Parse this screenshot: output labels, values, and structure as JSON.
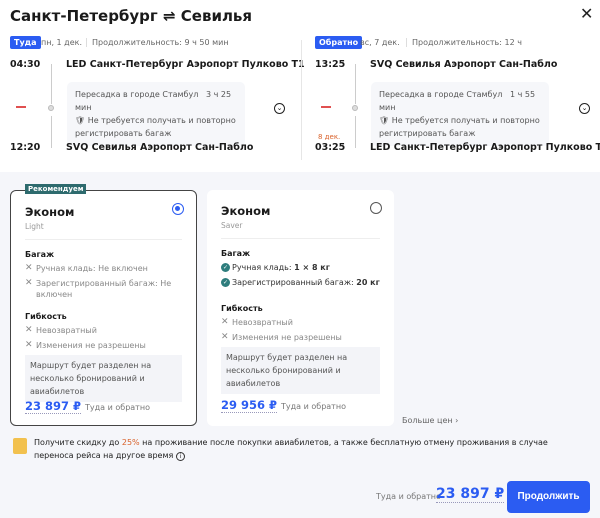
{
  "header": {
    "title": "Санкт-Петербург ⇌ Севилья",
    "close": "✕"
  },
  "outbound": {
    "badge": "Туда",
    "date": "пн, 1 дек.",
    "duration": "Продолжительность: 9 ч 50 мин",
    "dep_time": "04:30",
    "dep_airport": "LED Санкт-Петербург Аэропорт Пулково T1",
    "transfer": "Пересадка в городе Стамбул",
    "transfer_time": "3 ч 25 мин",
    "baggage_note": "Не требуется получать и повторно регистрировать багаж",
    "arr_time": "12:20",
    "arr_airport": "SVQ Севилья Аэропорт Сан-Пабло"
  },
  "inbound": {
    "badge": "Обратно",
    "date": "вс, 7 дек.",
    "duration": "Продолжительность: 12 ч",
    "dep_time": "13:25",
    "dep_airport": "SVQ Севилья Аэропорт Сан-Пабло",
    "transfer": "Пересадка в городе Стамбул",
    "transfer_time": "1 ч 55 мин",
    "baggage_note": "Не требуется получать и повторно регистрировать багаж",
    "arr_date": "8 дек.",
    "arr_time": "03:25",
    "arr_airport": "LED Санкт-Петербург Аэропорт Пулково T1"
  },
  "fares": [
    {
      "recommended": "Рекомендуем",
      "name": "Эконом",
      "sub": "Light",
      "selected": true,
      "baggage_title": "Багаж",
      "baggage": [
        "Ручная кладь: Не включен",
        "Зарегистрированный багаж: Не включен"
      ],
      "flex_title": "Гибкость",
      "flex": [
        "Невозвратный",
        "Изменения не разрешены"
      ],
      "note": "Маршрут будет разделен на несколько бронирований и авиабилетов",
      "price": "23 897 ₽",
      "price_label": "Туда и обратно"
    },
    {
      "name": "Эконом",
      "sub": "Saver",
      "selected": false,
      "baggage_title": "Багаж",
      "baggage_a": "Ручная кладь: ",
      "baggage_a_val": "1 × 8 кг",
      "baggage_b": "Зарегистрированный багаж: ",
      "baggage_b_val": "20 кг",
      "flex_title": "Гибкость",
      "flex": [
        "Невозвратный",
        "Изменения не разрешены"
      ],
      "note": "Маршрут будет разделен на несколько бронирований и авиабилетов",
      "price": "29 956 ₽",
      "price_label": "Туда и обратно"
    }
  ],
  "more_prices": "Больше цен",
  "promo": {
    "pre": "Получите скидку до ",
    "highlight": "25%",
    "post": " на проживание после покупки авиабилетов, а также бесплатную отмену проживания в случае переноса рейса на другое время"
  },
  "footer": {
    "label": "Туда и обратно",
    "price": "23 897 ₽",
    "button": "Продолжить"
  },
  "colors": {
    "accent": "#2b5cf2",
    "recommended": "#2e6b6e",
    "highlight": "#d9622b"
  }
}
